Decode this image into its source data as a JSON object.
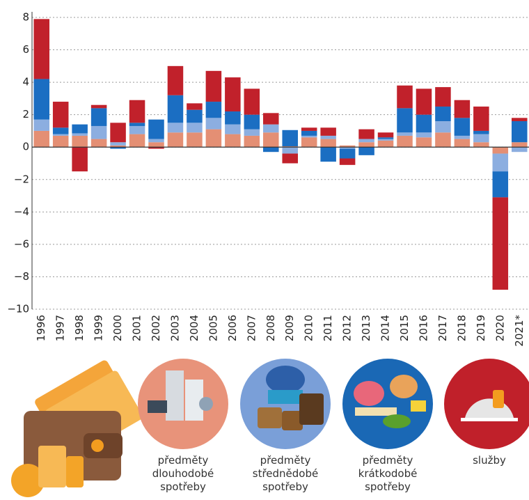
{
  "chart_data": {
    "type": "bar",
    "stacked": true,
    "categories": [
      "1996",
      "1997",
      "1998",
      "1999",
      "2000",
      "2001",
      "2002",
      "2003",
      "2004",
      "2005",
      "2006",
      "2007",
      "2008",
      "2009",
      "2010",
      "2011",
      "2012",
      "2013",
      "2014",
      "2015",
      "2016",
      "2017",
      "2018",
      "2019",
      "2020",
      "2021*"
    ],
    "series": [
      {
        "name": "předměty dlouhodobé spotřeby",
        "color": "#e48f74",
        "values": [
          1.0,
          0.7,
          0.7,
          0.5,
          0.1,
          0.8,
          0.3,
          0.9,
          0.9,
          1.1,
          0.8,
          0.7,
          0.9,
          0.05,
          0.6,
          0.5,
          0.1,
          0.3,
          0.4,
          0.7,
          0.6,
          0.9,
          0.5,
          0.3,
          -0.4,
          0.3
        ]
      },
      {
        "name": "předměty střednědobé spotřeby",
        "color": "#8caee0",
        "values": [
          0.7,
          0.1,
          0.15,
          0.8,
          0.2,
          0.5,
          0.2,
          0.6,
          0.6,
          0.7,
          0.6,
          0.4,
          0.5,
          -0.4,
          0.1,
          0.2,
          -0.1,
          0.2,
          0.1,
          0.2,
          0.3,
          0.7,
          0.2,
          0.5,
          -1.1,
          -0.3
        ]
      },
      {
        "name": "předměty krátkodobé spotřeby",
        "color": "#1b6ec2",
        "values": [
          2.5,
          0.4,
          0.55,
          1.1,
          -0.1,
          0.2,
          1.2,
          1.7,
          0.8,
          1.0,
          0.8,
          0.9,
          -0.3,
          1.0,
          0.3,
          -0.9,
          -0.6,
          -0.5,
          0.1,
          1.5,
          1.1,
          0.9,
          1.1,
          0.2,
          -1.6,
          1.3
        ]
      },
      {
        "name": "služby",
        "color": "#c1212b",
        "values": [
          3.7,
          1.6,
          -1.5,
          0.2,
          1.2,
          1.4,
          -0.1,
          1.8,
          0.4,
          1.9,
          2.1,
          1.6,
          0.7,
          -0.6,
          0.2,
          0.5,
          -0.4,
          0.6,
          0.3,
          1.4,
          1.6,
          1.2,
          1.1,
          1.5,
          -5.7,
          0.2
        ]
      }
    ],
    "ylim": [
      -10,
      8
    ],
    "yticks": [
      {
        "value": -10,
        "label": "−10"
      },
      {
        "value": -8,
        "label": "−8"
      },
      {
        "value": -6,
        "label": "−6"
      },
      {
        "value": -4,
        "label": "−4"
      },
      {
        "value": -2,
        "label": "−2"
      },
      0,
      2,
      4,
      6,
      8
    ],
    "grid": true
  }
}
